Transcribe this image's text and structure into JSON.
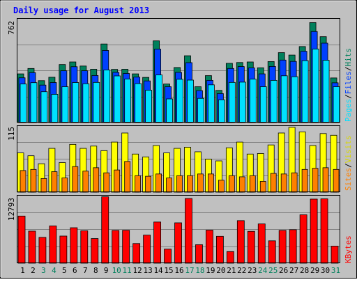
{
  "chart_data": [
    {
      "type": "bar",
      "title": "Daily usage for August 2013",
      "categories": [
        "1",
        "2",
        "3",
        "4",
        "5",
        "6",
        "7",
        "8",
        "9",
        "10",
        "11",
        "12",
        "13",
        "14",
        "15",
        "16",
        "17",
        "18",
        "19",
        "20",
        "21",
        "22",
        "23",
        "24",
        "25",
        "26",
        "27",
        "28",
        "29",
        "30",
        "31"
      ],
      "weekend_days": [
        "3",
        "4",
        "10",
        "11",
        "17",
        "18",
        "24",
        "25",
        "31"
      ],
      "y_tick_label": "762",
      "ylim": [
        0,
        762
      ],
      "legend": [
        "Pages",
        "/",
        "Files",
        "/",
        "Hits"
      ],
      "legend_placement": "right",
      "grid": true,
      "series": [
        {
          "name": "Hits",
          "color": "#00805c",
          "values": [
            360,
            400,
            310,
            335,
            429,
            448,
            418,
            394,
            581,
            393,
            394,
            360,
            334,
            604,
            285,
            407,
            494,
            265,
            347,
            238,
            438,
            444,
            448,
            405,
            451,
            517,
            499,
            562,
            739,
            635,
            330
          ]
        },
        {
          "name": "Files",
          "color": "#0040ff",
          "values": [
            331,
            369,
            277,
            296,
            383,
            413,
            383,
            348,
            533,
            371,
            363,
            336,
            308,
            543,
            265,
            371,
            443,
            236,
            312,
            214,
            400,
            414,
            404,
            360,
            415,
            462,
            452,
            527,
            673,
            587,
            294
          ]
        },
        {
          "name": "Pages",
          "color": "#00e0ff",
          "values": [
            285,
            295,
            228,
            209,
            265,
            296,
            287,
            297,
            389,
            345,
            322,
            288,
            239,
            352,
            175,
            320,
            314,
            179,
            279,
            168,
            297,
            299,
            321,
            265,
            312,
            346,
            339,
            458,
            544,
            461,
            265
          ]
        }
      ]
    },
    {
      "type": "bar",
      "categories": [
        "1",
        "2",
        "3",
        "4",
        "5",
        "6",
        "7",
        "8",
        "9",
        "10",
        "11",
        "12",
        "13",
        "14",
        "15",
        "16",
        "17",
        "18",
        "19",
        "20",
        "21",
        "22",
        "23",
        "24",
        "25",
        "26",
        "27",
        "28",
        "29",
        "30",
        "31"
      ],
      "y_tick_label": "115",
      "ylim": [
        0,
        115
      ],
      "legend": [
        "Sites",
        "/",
        "Visits"
      ],
      "legend_placement": "right",
      "grid": true,
      "series": [
        {
          "name": "Visits",
          "color": "#ffff00",
          "values": [
            69,
            64,
            50,
            77,
            52,
            84,
            77,
            81,
            73,
            88,
            104,
            67,
            62,
            82,
            69,
            77,
            79,
            71,
            58,
            55,
            78,
            88,
            67,
            68,
            83,
            104,
            114,
            106,
            82,
            103,
            100
          ]
        },
        {
          "name": "Sites",
          "color": "#ff8000",
          "values": [
            38,
            40,
            24,
            36,
            25,
            45,
            37,
            43,
            34,
            39,
            54,
            29,
            28,
            32,
            25,
            29,
            29,
            32,
            32,
            21,
            29,
            27,
            29,
            19,
            33,
            32,
            34,
            40,
            42,
            43,
            40
          ]
        }
      ]
    },
    {
      "type": "bar",
      "categories": [
        "1",
        "2",
        "3",
        "4",
        "5",
        "6",
        "7",
        "8",
        "9",
        "10",
        "11",
        "12",
        "13",
        "14",
        "15",
        "16",
        "17",
        "18",
        "19",
        "20",
        "21",
        "22",
        "23",
        "24",
        "25",
        "26",
        "27",
        "28",
        "29",
        "30",
        "31"
      ],
      "y_tick_label": "12793",
      "ylim": [
        0,
        12793
      ],
      "legend": [
        "KBytes"
      ],
      "legend_placement": "right",
      "grid": true,
      "series": [
        {
          "name": "KBytes",
          "color": "#ff0000",
          "values": [
            9025,
            6139,
            4944,
            7136,
            5198,
            6793,
            6208,
            4723,
            12715,
            6272,
            6301,
            3763,
            5381,
            7883,
            2693,
            7731,
            12386,
            3544,
            6327,
            5155,
            2231,
            8148,
            6100,
            7526,
            4287,
            6283,
            6413,
            9269,
            12271,
            12316,
            3270
          ]
        }
      ]
    }
  ]
}
